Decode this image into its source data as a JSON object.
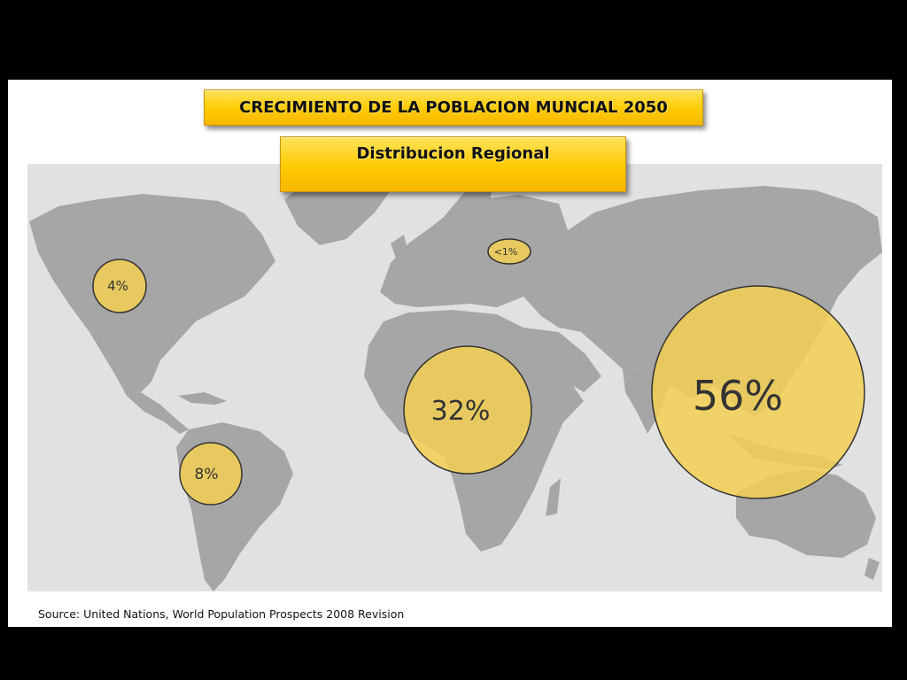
{
  "title": "CRECIMIENTO DE LA POBLACION MUNCIAL 2050",
  "subtitle": "Distribucion Regional",
  "source": "Source: United Nations, World Population Prospects 2008 Revision",
  "colors": {
    "background": "#000000",
    "slide": "#ffffff",
    "ocean": "#e1e1e1",
    "land": "#a6a6a6",
    "bubble_fill": "#f2cf52",
    "bubble_stroke": "#333333",
    "banner": "#ffca00"
  },
  "regions": [
    {
      "id": "north-america",
      "label": "4%",
      "share_pct": 4
    },
    {
      "id": "europe",
      "label": "<1%",
      "share_pct": 1
    },
    {
      "id": "latin-america",
      "label": "8%",
      "share_pct": 8
    },
    {
      "id": "africa",
      "label": "32%",
      "share_pct": 32
    },
    {
      "id": "asia",
      "label": "56%",
      "share_pct": 56
    }
  ]
}
